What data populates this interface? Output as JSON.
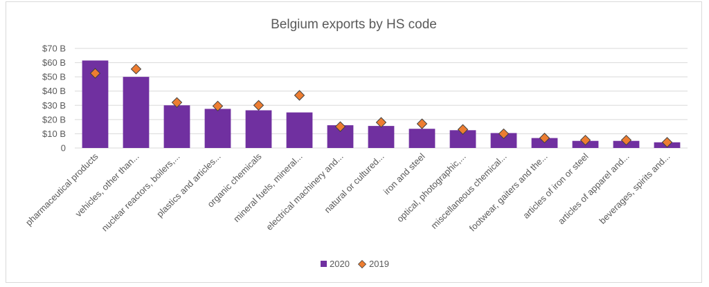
{
  "chart_data": {
    "type": "bar",
    "title": "Belgium exports by HS code",
    "categories": [
      "pharmaceutical products",
      "vehicles, other than...",
      "nuclear reactors, boilers,...",
      "plastics and articles...",
      "organic chemicals",
      "mineral fuels, mineral...",
      "electrical machinery and...",
      "natural or cultured...",
      "iron and steel",
      "optical, photographic,...",
      "miscellaneous chemical...",
      "footwear, gaiters and the...",
      "articles of iron or steel",
      "articles of apparel and...",
      "beverages, spirits and..."
    ],
    "series": [
      {
        "name": "2020",
        "type": "bar",
        "color": "#7030a0",
        "values": [
          61.5,
          50,
          30,
          27.5,
          26.5,
          25,
          16,
          15.5,
          13.5,
          12.5,
          10.5,
          7,
          5,
          5,
          4
        ]
      },
      {
        "name": "2019",
        "type": "marker",
        "marker": "diamond",
        "color": "#ed7d31",
        "values": [
          52.5,
          55.5,
          32,
          29.5,
          30,
          37,
          15,
          18,
          17,
          13,
          10,
          7,
          5.5,
          5.5,
          4
        ]
      }
    ],
    "ylim": [
      0,
      70
    ],
    "yticks": [
      0,
      10,
      20,
      30,
      40,
      50,
      60,
      70
    ],
    "ytick_labels": [
      "0",
      "$10 B",
      "$20 B",
      "$30 B",
      "$40 B",
      "$50 B",
      "$60 B",
      "$70 B"
    ],
    "grid": true,
    "legend_position": "bottom"
  }
}
